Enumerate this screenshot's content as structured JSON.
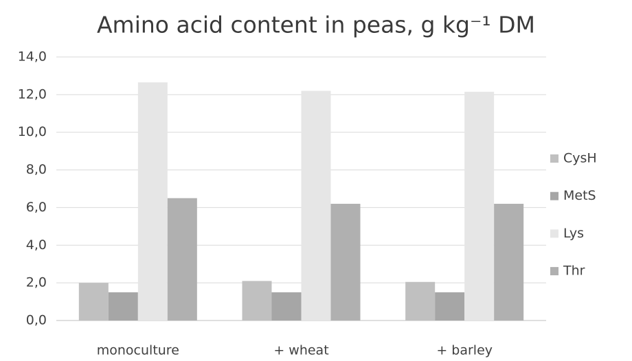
{
  "chart_data": {
    "type": "bar",
    "title": "Amino acid content in peas, g kg⁻¹ DM",
    "categories": [
      "monoculture",
      "+ wheat",
      "+ barley"
    ],
    "series": [
      {
        "name": "CysH",
        "color": "#c0c0c0",
        "values": [
          2.0,
          2.1,
          2.05
        ]
      },
      {
        "name": "MetS",
        "color": "#a6a6a6",
        "values": [
          1.5,
          1.5,
          1.5
        ]
      },
      {
        "name": "Lys",
        "color": "#e6e6e6",
        "values": [
          12.65,
          12.2,
          12.15
        ]
      },
      {
        "name": "Thr",
        "color": "#b0b0b0",
        "values": [
          6.5,
          6.2,
          6.2
        ]
      }
    ],
    "ylim": [
      0,
      14
    ],
    "yticks": [
      {
        "value": 0,
        "label": "0,0"
      },
      {
        "value": 2,
        "label": "2,0"
      },
      {
        "value": 4,
        "label": "4,0"
      },
      {
        "value": 6,
        "label": "6,0"
      },
      {
        "value": 8,
        "label": "8,0"
      },
      {
        "value": 10,
        "label": "10,0"
      },
      {
        "value": 12,
        "label": "12,0"
      },
      {
        "value": 14,
        "label": "14,0"
      }
    ],
    "grid": true,
    "legend": "right"
  }
}
